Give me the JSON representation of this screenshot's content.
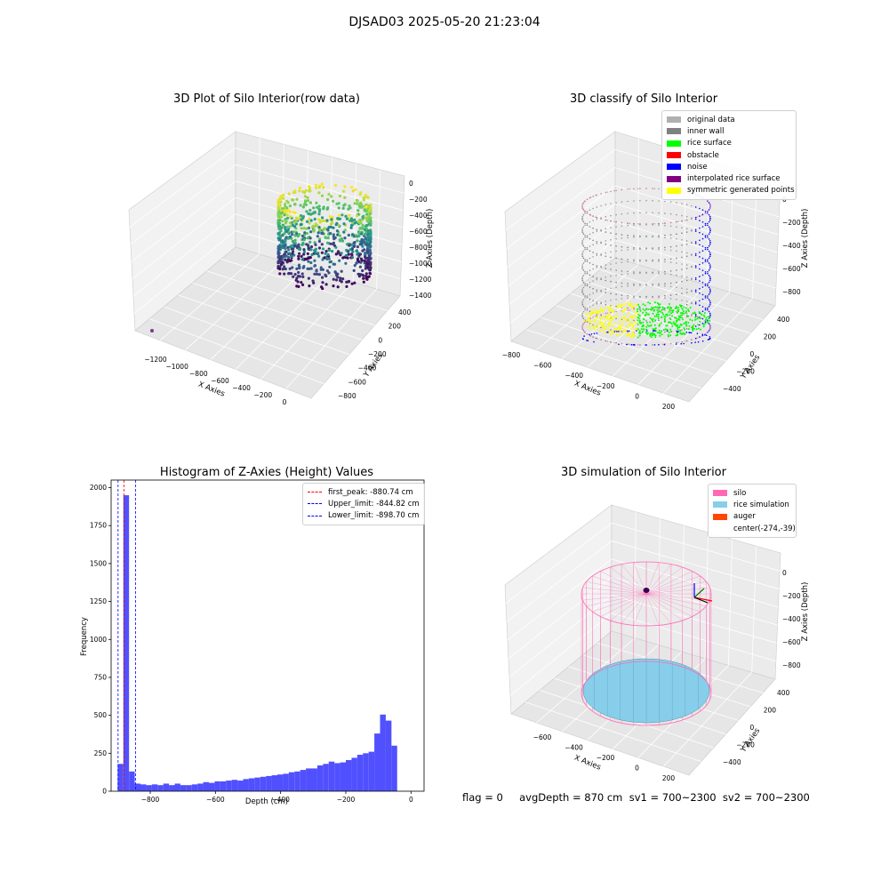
{
  "suptitle": "DJSAD03 2025-05-20 21:23:04",
  "footer": "flag = 0     avgDepth = 870 cm  sv1 = 700~2300  sv2 = 700~2300",
  "colors": {
    "histogram_bar": "#5050ff",
    "first_peak_line": "#ff0000",
    "limit_lines": "#0000ff",
    "silo_wire": "#ff69b4",
    "rice_fill": "#87ceeb",
    "inner_wall": "#808080",
    "rice_surface": "#00ff00",
    "noise": "#0000ff",
    "symmetric": "#ffff00"
  },
  "chart_data": [
    {
      "type": "scatter",
      "title": "3D Plot of Silo Interior(row data)",
      "xlabel": "X Axies",
      "ylabel": "Y Axies",
      "zlabel": "Z Axies (Depth)",
      "x_ticks": [
        "−1200",
        "−1000",
        "−800",
        "−600",
        "−400",
        "−200",
        "0"
      ],
      "y_ticks": [
        "−800",
        "−600",
        "−400",
        "−200",
        "0",
        "200",
        "400"
      ],
      "z_ticks": [
        "0",
        "−200",
        "−400",
        "−600",
        "−800",
        "−1000",
        "−1200",
        "−1400"
      ],
      "colormap": "viridis"
    },
    {
      "type": "scatter",
      "title": "3D classify of Silo Interior",
      "xlabel": "X Axies",
      "ylabel": "Y Axies",
      "zlabel": "Z Axies (Depth)",
      "x_ticks": [
        "−800",
        "−600",
        "−400",
        "−200",
        "0",
        "200"
      ],
      "y_ticks": [
        "−400",
        "−200",
        "0",
        "200",
        "400"
      ],
      "z_ticks": [
        "0",
        "−200",
        "−400",
        "−600",
        "−800"
      ],
      "legend": [
        {
          "label": "original data",
          "color": "#b0b0b0"
        },
        {
          "label": "inner wall",
          "color": "#808080"
        },
        {
          "label": "rice surface",
          "color": "#00ff00"
        },
        {
          "label": "obstacle",
          "color": "#ff0000"
        },
        {
          "label": "noise",
          "color": "#0000ff"
        },
        {
          "label": "interpolated rice surface",
          "color": "#800080"
        },
        {
          "label": "symmetric generated points",
          "color": "#ffff00"
        }
      ]
    },
    {
      "type": "bar",
      "title": "Histogram of Z-Axies (Height) Values",
      "xlabel": "Depth (cm)",
      "ylabel": "Frequency",
      "xlim": [
        -920,
        40
      ],
      "ylim": [
        0,
        2050
      ],
      "x_ticks": [
        -800,
        -600,
        -400,
        -200,
        0
      ],
      "y_ticks": [
        0,
        250,
        500,
        750,
        1000,
        1250,
        1500,
        1750,
        2000
      ],
      "bin_width": 17.5,
      "bins_start": [
        -900,
        -882.5,
        -865,
        -847.5,
        -830,
        -812.5,
        -795,
        -777.5,
        -760,
        -742.5,
        -725,
        -707.5,
        -690,
        -672.5,
        -655,
        -637.5,
        -620,
        -602.5,
        -585,
        -567.5,
        -550,
        -532.5,
        -515,
        -497.5,
        -480,
        -462.5,
        -445,
        -427.5,
        -410,
        -392.5,
        -375,
        -357.5,
        -340,
        -322.5,
        -305,
        -287.5,
        -270,
        -252.5,
        -235,
        -217.5,
        -200,
        -182.5,
        -165,
        -147.5,
        -130,
        -112.5,
        -95,
        -77.5,
        -60,
        -42.5
      ],
      "values": [
        180,
        1950,
        130,
        50,
        45,
        40,
        45,
        40,
        50,
        40,
        50,
        40,
        40,
        45,
        50,
        60,
        55,
        65,
        65,
        70,
        75,
        70,
        80,
        85,
        90,
        95,
        100,
        105,
        110,
        115,
        125,
        130,
        140,
        150,
        150,
        170,
        180,
        195,
        185,
        190,
        205,
        220,
        240,
        250,
        260,
        380,
        505,
        465,
        300,
        0
      ],
      "vlines": [
        {
          "x": -880.74,
          "color": "#ff0000",
          "label": "first_peak: -880.74 cm"
        },
        {
          "x": -844.82,
          "color": "#0000ff",
          "label": "Upper_limit: -844.82 cm"
        },
        {
          "x": -898.7,
          "color": "#0000ff",
          "label": "Lower_limit: -898.70 cm"
        }
      ],
      "legend_position": "upper right"
    },
    {
      "type": "scatter",
      "title": "3D simulation of Silo Interior",
      "xlabel": "X Axies",
      "ylabel": "Y Axies",
      "zlabel": "Z Axies (Depth)",
      "x_ticks": [
        "−600",
        "−400",
        "−200",
        "0",
        "200"
      ],
      "y_ticks": [
        "−400",
        "−200",
        "0",
        "200",
        "400"
      ],
      "z_ticks": [
        "0",
        "−200",
        "−400",
        "−600",
        "−800"
      ],
      "legend": [
        {
          "label": "silo",
          "color": "#ff69b4"
        },
        {
          "label": "rice simulation",
          "color": "#87ceeb"
        },
        {
          "label": "auger",
          "color": "#ff4500"
        },
        {
          "label": "center(-274,-39)",
          "color": ""
        }
      ]
    }
  ]
}
